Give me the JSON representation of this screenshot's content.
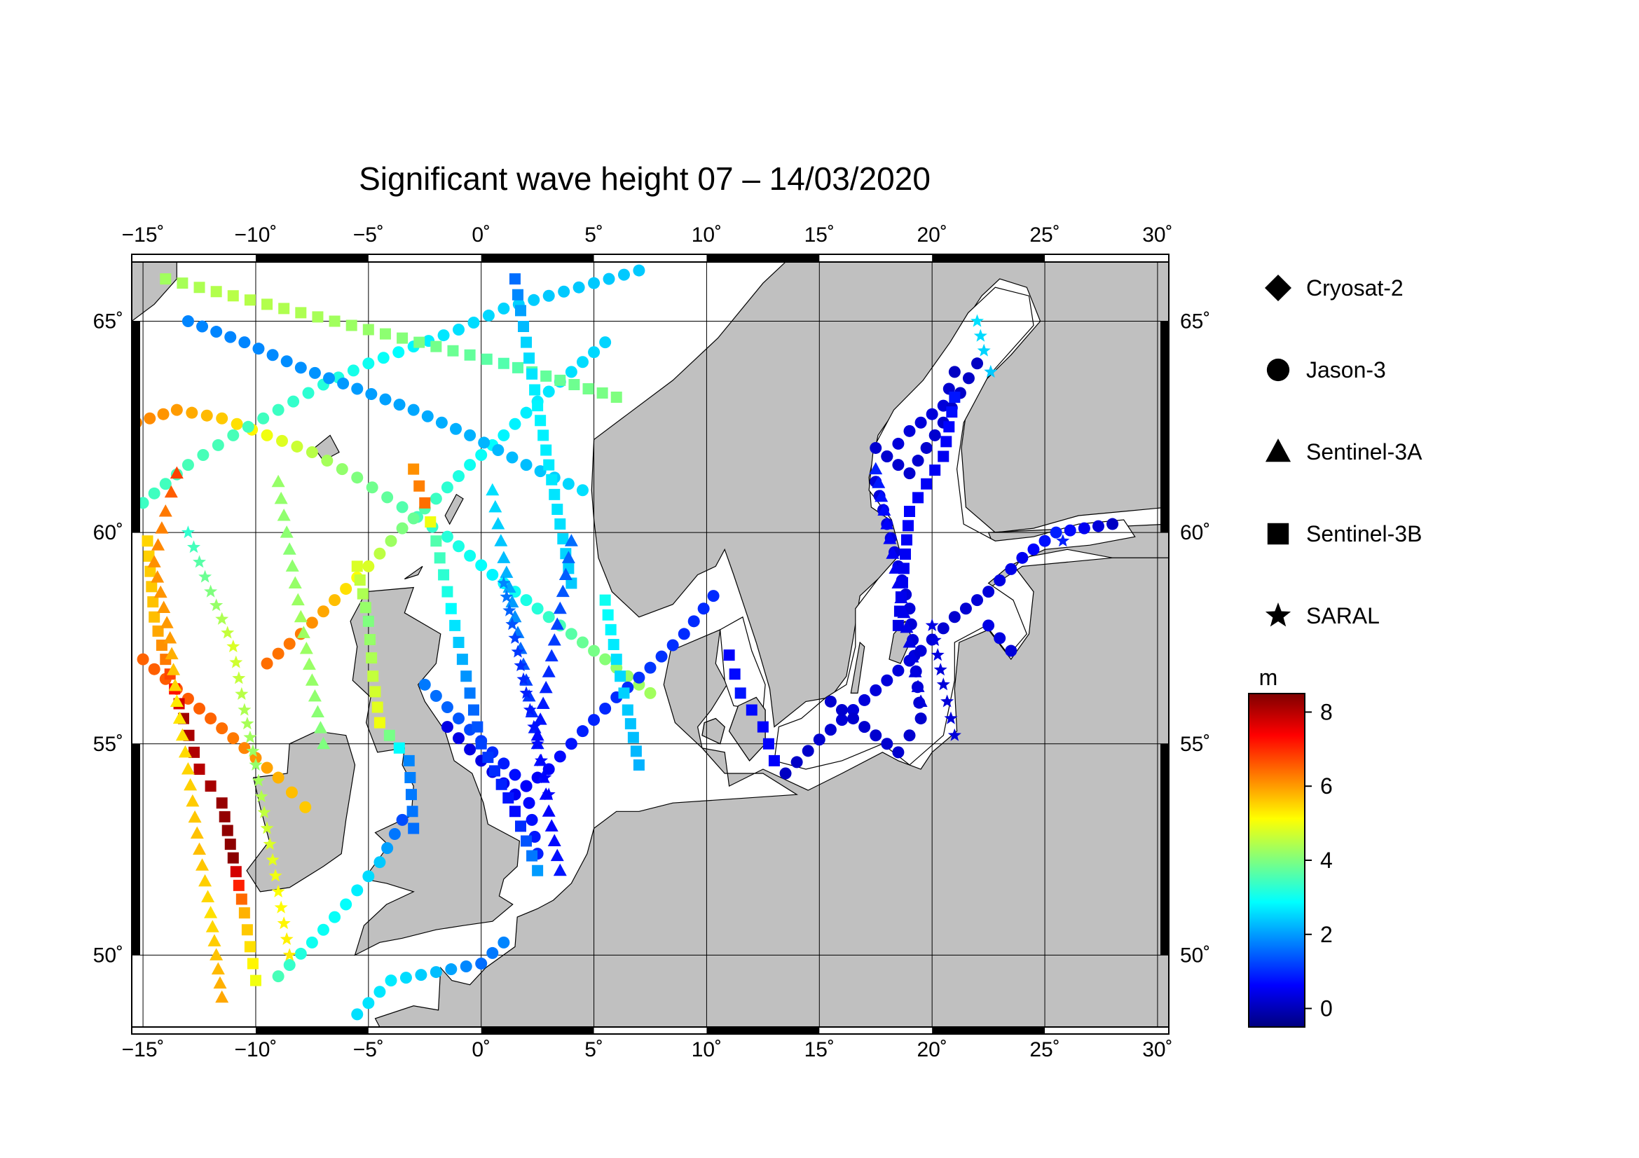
{
  "title": "Significant wave height 07 – 14/03/2020",
  "map": {
    "lon_range": [
      -15.5,
      30.5
    ],
    "lat_range": [
      48.3,
      66.4
    ],
    "lon_ticks": [
      "−15˚",
      "−10˚",
      "−5˚",
      "0˚",
      "5˚",
      "10˚",
      "15˚",
      "20˚",
      "25˚",
      "30˚"
    ],
    "lat_ticks": [
      "50˚",
      "55˚",
      "60˚",
      "65˚"
    ],
    "land_color": "#c0c0c0",
    "sea_color": "#ffffff",
    "grid": true
  },
  "legend": {
    "satellites": [
      {
        "name": "Cryosat-2",
        "marker": "diamond"
      },
      {
        "name": "Jason-3",
        "marker": "circle"
      },
      {
        "name": "Sentinel-3A",
        "marker": "triangle"
      },
      {
        "name": "Sentinel-3B",
        "marker": "square"
      },
      {
        "name": "SARAL",
        "marker": "star"
      }
    ]
  },
  "colorbar": {
    "unit": "m",
    "min": -0.5,
    "max": 8.5,
    "tick_labels": [
      "8",
      "6",
      "4",
      "2",
      "0"
    ],
    "colormap": "jet",
    "stops": [
      "#00007f",
      "#0000ff",
      "#007fff",
      "#00ffff",
      "#7fff7f",
      "#ffff00",
      "#ff7f00",
      "#ff0000",
      "#7f0000"
    ]
  },
  "chart_data": {
    "type": "scatter",
    "x_name": "longitude (˚)",
    "y_name": "latitude (˚)",
    "value_name": "significant wave height (m)",
    "tracks": [
      {
        "marker": "circle",
        "points": [
          [
            -15.3,
            62.6,
            6.2
          ],
          [
            -13.5,
            62.9,
            6.0
          ],
          [
            -11.5,
            62.7,
            5.6
          ],
          [
            -9.5,
            62.3,
            5.0
          ],
          [
            -7.5,
            61.9,
            4.5
          ],
          [
            -5.5,
            61.3,
            4.0
          ],
          [
            -3.5,
            60.6,
            3.6
          ],
          [
            -1.5,
            59.9,
            3.2
          ],
          [
            0.5,
            59.0,
            2.8
          ],
          [
            2.5,
            58.2,
            3.2
          ],
          [
            4.5,
            57.4,
            3.8
          ],
          [
            6.0,
            56.8,
            4.2
          ],
          [
            7.5,
            56.2,
            4.3
          ]
        ]
      },
      {
        "marker": "circle",
        "points": [
          [
            -15.0,
            60.7,
            3.4
          ],
          [
            -13.0,
            61.6,
            3.5
          ],
          [
            -11.0,
            62.3,
            3.5
          ],
          [
            -9.0,
            62.9,
            3.4
          ],
          [
            -7.0,
            63.5,
            3.2
          ],
          [
            -5.0,
            64.0,
            3.0
          ],
          [
            -3.0,
            64.4,
            2.8
          ],
          [
            -1.0,
            64.8,
            2.6
          ],
          [
            1.0,
            65.3,
            2.5
          ],
          [
            3.0,
            65.6,
            2.4
          ],
          [
            5.0,
            65.9,
            2.4
          ],
          [
            7.0,
            66.2,
            2.4
          ]
        ]
      },
      {
        "marker": "circle",
        "points": [
          [
            -15.0,
            57.0,
            6.5
          ],
          [
            -13.5,
            56.3,
            6.6
          ],
          [
            -12.0,
            55.6,
            6.5
          ],
          [
            -10.5,
            54.9,
            6.2
          ],
          [
            -9.0,
            54.2,
            5.8
          ],
          [
            -7.8,
            53.5,
            5.6
          ]
        ]
      },
      {
        "marker": "circle",
        "points": [
          [
            -9.5,
            56.9,
            6.4
          ],
          [
            -8.0,
            57.6,
            6.3
          ],
          [
            -6.5,
            58.4,
            5.7
          ],
          [
            -5.0,
            59.2,
            4.8
          ],
          [
            -3.5,
            60.1,
            4.0
          ],
          [
            -2.0,
            60.8,
            3.4
          ],
          [
            -0.5,
            61.6,
            3.0
          ],
          [
            1.0,
            62.3,
            2.8
          ],
          [
            2.5,
            63.1,
            2.7
          ],
          [
            4.0,
            63.8,
            2.6
          ],
          [
            5.5,
            64.5,
            2.5
          ]
        ]
      },
      {
        "marker": "circle",
        "points": [
          [
            -13.0,
            65.0,
            1.8
          ],
          [
            -10.5,
            64.5,
            1.8
          ],
          [
            -8.0,
            63.9,
            1.9
          ],
          [
            -5.5,
            63.4,
            2.0
          ],
          [
            -3.0,
            62.9,
            2.1
          ],
          [
            -0.5,
            62.3,
            2.2
          ],
          [
            2.0,
            61.6,
            2.3
          ],
          [
            4.5,
            61.0,
            2.6
          ]
        ]
      },
      {
        "marker": "circle",
        "points": [
          [
            -1.5,
            55.4,
            0.4
          ],
          [
            0.0,
            54.6,
            0.4
          ],
          [
            1.5,
            53.8,
            0.5
          ],
          [
            3.0,
            54.4,
            0.6
          ],
          [
            4.5,
            55.3,
            0.9
          ],
          [
            6.0,
            56.1,
            1.0
          ],
          [
            7.5,
            56.8,
            1.1
          ],
          [
            9.0,
            57.6,
            1.0
          ],
          [
            10.3,
            58.5,
            1.0
          ]
        ]
      },
      {
        "marker": "circle",
        "points": [
          [
            -2.5,
            56.4,
            1.7
          ],
          [
            -1.0,
            55.6,
            1.4
          ],
          [
            0.5,
            54.8,
            1.0
          ],
          [
            2.0,
            54.0,
            0.6
          ],
          [
            2.5,
            52.4,
            0.9
          ]
        ]
      },
      {
        "marker": "circle",
        "points": [
          [
            -3.5,
            53.2,
            1.3
          ],
          [
            -4.5,
            52.2,
            2.4
          ],
          [
            -6.0,
            51.2,
            2.9
          ],
          [
            -7.5,
            50.3,
            3.0
          ],
          [
            -9.0,
            49.5,
            3.5
          ]
        ]
      },
      {
        "marker": "circle",
        "points": [
          [
            -5.5,
            48.6,
            2.6
          ],
          [
            -4.0,
            49.4,
            2.7
          ],
          [
            -2.0,
            49.6,
            2.3
          ],
          [
            0.0,
            49.8,
            1.6
          ],
          [
            1.0,
            50.3,
            1.8
          ]
        ]
      },
      {
        "marker": "circle",
        "points": [
          [
            13.5,
            54.3,
            0.1
          ],
          [
            15.0,
            55.1,
            0.2
          ],
          [
            16.5,
            55.8,
            0.3
          ],
          [
            18.0,
            56.5,
            0.3
          ],
          [
            19.5,
            57.2,
            0.3
          ],
          [
            21.0,
            58.0,
            0.2
          ],
          [
            22.5,
            58.6,
            0.3
          ],
          [
            24.0,
            59.4,
            0.5
          ],
          [
            25.5,
            60.0,
            0.9
          ],
          [
            28.0,
            60.2,
            0.1
          ]
        ]
      },
      {
        "marker": "circle",
        "points": [
          [
            15.5,
            56.0,
            0.2
          ],
          [
            17.0,
            55.4,
            0.2
          ],
          [
            18.5,
            54.8,
            0.2
          ],
          [
            19.5,
            55.6,
            0.2
          ],
          [
            19.0,
            58.2,
            0.3
          ],
          [
            18.5,
            59.2,
            0.3
          ],
          [
            17.5,
            61.2,
            0.3
          ],
          [
            18.0,
            61.8,
            0.3
          ],
          [
            19.0,
            62.4,
            0.3
          ],
          [
            20.5,
            63.0,
            0.3
          ],
          [
            21.0,
            63.8,
            0.1
          ]
        ]
      },
      {
        "marker": "circle",
        "points": [
          [
            17.5,
            62.0,
            0.2
          ],
          [
            19.0,
            61.4,
            0.2
          ],
          [
            20.5,
            62.6,
            0.2
          ],
          [
            22.0,
            64.0,
            0.1
          ],
          [
            23.5,
            57.2,
            0.3
          ],
          [
            22.5,
            57.8,
            0.4
          ]
        ]
      },
      {
        "marker": "square",
        "points": [
          [
            -14.8,
            59.8,
            5.5
          ],
          [
            -14.5,
            58.0,
            5.7
          ],
          [
            -14.0,
            57.0,
            6.3
          ],
          [
            -13.2,
            55.6,
            8.2
          ],
          [
            -12.5,
            54.4,
            8.0
          ],
          [
            -11.5,
            53.6,
            8.3
          ],
          [
            -11.0,
            52.3,
            8.4
          ],
          [
            -10.5,
            51.0,
            5.8
          ],
          [
            -10.0,
            49.4,
            5.0
          ]
        ]
      },
      {
        "marker": "square",
        "points": [
          [
            -14.0,
            66.0,
            4.3
          ],
          [
            -11.0,
            65.6,
            4.5
          ],
          [
            -8.0,
            65.2,
            4.4
          ],
          [
            -5.0,
            64.8,
            4.2
          ],
          [
            -2.0,
            64.4,
            3.9
          ],
          [
            1.0,
            64.0,
            3.6
          ],
          [
            3.5,
            63.6,
            3.8
          ],
          [
            6.0,
            63.2,
            4.0
          ]
        ]
      },
      {
        "marker": "square",
        "points": [
          [
            -3.0,
            61.5,
            6.1
          ],
          [
            -2.5,
            60.7,
            6.4
          ],
          [
            -2.0,
            59.8,
            3.6
          ],
          [
            -1.5,
            58.6,
            3.1
          ],
          [
            -1.0,
            57.4,
            2.4
          ],
          [
            -0.5,
            56.2,
            1.7
          ],
          [
            0.0,
            55.0,
            1.2
          ],
          [
            1.5,
            53.4,
            0.7
          ],
          [
            2.5,
            52.0,
            2.0
          ]
        ]
      },
      {
        "marker": "square",
        "points": [
          [
            1.5,
            66.0,
            1.6
          ],
          [
            2.0,
            64.5,
            2.5
          ],
          [
            2.5,
            63.0,
            2.8
          ],
          [
            3.0,
            61.6,
            2.7
          ],
          [
            3.5,
            60.2,
            2.6
          ],
          [
            4.0,
            58.8,
            2.4
          ]
        ]
      },
      {
        "marker": "square",
        "points": [
          [
            5.5,
            58.4,
            3.0
          ],
          [
            6.0,
            57.0,
            2.6
          ],
          [
            6.5,
            55.8,
            2.4
          ],
          [
            7.0,
            54.5,
            2.2
          ],
          [
            11.0,
            57.1,
            0.6
          ],
          [
            11.5,
            56.2,
            0.8
          ],
          [
            12.5,
            55.4,
            0.6
          ],
          [
            13.0,
            54.6,
            0.6
          ],
          [
            18.5,
            57.8,
            0.4
          ],
          [
            19.0,
            60.5,
            0.6
          ],
          [
            20.5,
            61.8,
            0.5
          ],
          [
            21.0,
            63.2,
            0.8
          ]
        ]
      },
      {
        "marker": "square",
        "points": [
          [
            -5.5,
            59.2,
            4.8
          ],
          [
            -5.0,
            57.9,
            4.0
          ],
          [
            -4.8,
            56.6,
            4.6
          ],
          [
            -4.5,
            55.5,
            5.0
          ],
          [
            -3.2,
            54.6,
            1.8
          ],
          [
            -3.0,
            53.0,
            1.6
          ]
        ]
      },
      {
        "marker": "triangle",
        "points": [
          [
            -13.5,
            61.4,
            6.8
          ],
          [
            -14.0,
            60.5,
            6.3
          ],
          [
            -14.5,
            59.3,
            6.1
          ],
          [
            -13.8,
            57.5,
            6.0
          ],
          [
            -13.5,
            56.0,
            5.3
          ],
          [
            -13.0,
            54.4,
            5.5
          ],
          [
            -12.5,
            52.5,
            5.7
          ],
          [
            -12.0,
            51.0,
            5.4
          ],
          [
            -11.5,
            49.0,
            5.9
          ]
        ]
      },
      {
        "marker": "triangle",
        "points": [
          [
            -9.0,
            61.2,
            4.2
          ],
          [
            -8.5,
            59.6,
            4.1
          ],
          [
            -8.0,
            58.0,
            4.3
          ],
          [
            -7.5,
            56.5,
            4.2
          ],
          [
            -7.0,
            55.0,
            4.0
          ]
        ]
      },
      {
        "marker": "triangle",
        "points": [
          [
            0.5,
            61.0,
            2.6
          ],
          [
            1.0,
            59.4,
            2.3
          ],
          [
            1.5,
            58.0,
            1.9
          ],
          [
            2.0,
            56.5,
            1.2
          ],
          [
            2.5,
            55.0,
            0.8
          ],
          [
            3.0,
            53.4,
            0.6
          ],
          [
            3.5,
            52.0,
            0.8
          ]
        ]
      },
      {
        "marker": "triangle",
        "points": [
          [
            4.0,
            59.8,
            1.6
          ],
          [
            3.5,
            58.2,
            1.3
          ],
          [
            3.0,
            56.7,
            1.0
          ],
          [
            2.5,
            55.2,
            0.7
          ],
          [
            17.5,
            61.5,
            0.9
          ],
          [
            18.0,
            60.2,
            0.6
          ],
          [
            18.5,
            58.8,
            0.5
          ],
          [
            19.0,
            57.4,
            0.4
          ],
          [
            19.5,
            56.0,
            0.3
          ]
        ]
      },
      {
        "marker": "star",
        "points": [
          [
            -13.0,
            60.0,
            3.3
          ],
          [
            -12.0,
            58.6,
            4.0
          ],
          [
            -11.0,
            57.3,
            4.8
          ],
          [
            -10.5,
            55.8,
            4.4
          ],
          [
            -10.0,
            54.5,
            4.2
          ],
          [
            -9.5,
            53.0,
            4.7
          ],
          [
            -9.0,
            51.5,
            5.1
          ],
          [
            -8.5,
            50.0,
            5.3
          ]
        ]
      },
      {
        "marker": "star",
        "points": [
          [
            1.0,
            58.8,
            1.8
          ],
          [
            1.5,
            57.5,
            1.2
          ],
          [
            2.0,
            56.2,
            0.9
          ],
          [
            2.5,
            55.0,
            0.7
          ],
          [
            3.0,
            53.8,
            0.6
          ],
          [
            22.0,
            65.0,
            2.6
          ],
          [
            22.3,
            64.3,
            2.5
          ],
          [
            22.6,
            63.8,
            2.4
          ],
          [
            20.0,
            57.8,
            0.4
          ],
          [
            20.5,
            56.4,
            0.3
          ],
          [
            21.0,
            55.2,
            0.3
          ],
          [
            25.8,
            59.8,
            0.9
          ]
        ]
      }
    ]
  }
}
